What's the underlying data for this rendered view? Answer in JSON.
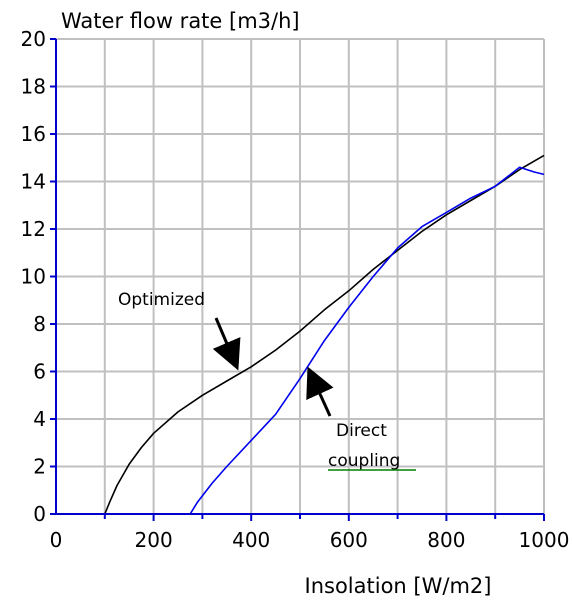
{
  "chart_data": {
    "type": "line",
    "title": "",
    "ylabel": "Water flow rate [m3/h]",
    "xlabel": "Insolation [W/m2]",
    "xlim": [
      0,
      1000
    ],
    "ylim": [
      0,
      20
    ],
    "grid": true,
    "x_ticks": [
      0,
      200,
      400,
      600,
      800,
      1000
    ],
    "y_ticks": [
      0,
      2,
      4,
      6,
      8,
      10,
      12,
      14,
      16,
      18,
      20
    ],
    "series": [
      {
        "name": "Optimized",
        "color": "#000000",
        "points": [
          [
            100,
            0
          ],
          [
            110,
            0.5
          ],
          [
            125,
            1.2
          ],
          [
            150,
            2.1
          ],
          [
            175,
            2.8
          ],
          [
            200,
            3.4
          ],
          [
            250,
            4.3
          ],
          [
            300,
            5.0
          ],
          [
            350,
            5.6
          ],
          [
            400,
            6.2
          ],
          [
            450,
            6.9
          ],
          [
            500,
            7.7
          ],
          [
            550,
            8.6
          ],
          [
            600,
            9.4
          ],
          [
            650,
            10.3
          ],
          [
            700,
            11.1
          ],
          [
            750,
            11.9
          ],
          [
            800,
            12.6
          ],
          [
            850,
            13.2
          ],
          [
            900,
            13.8
          ],
          [
            950,
            14.5
          ],
          [
            1000,
            15.1
          ]
        ]
      },
      {
        "name": "Direct coupling",
        "color": "#0000ee",
        "points": [
          [
            275,
            0
          ],
          [
            290,
            0.5
          ],
          [
            320,
            1.3
          ],
          [
            350,
            2.0
          ],
          [
            400,
            3.1
          ],
          [
            450,
            4.2
          ],
          [
            500,
            5.7
          ],
          [
            550,
            7.3
          ],
          [
            600,
            8.7
          ],
          [
            650,
            10.0
          ],
          [
            700,
            11.2
          ],
          [
            750,
            12.1
          ],
          [
            800,
            12.7
          ],
          [
            850,
            13.3
          ],
          [
            900,
            13.8
          ],
          [
            950,
            14.6
          ],
          [
            980,
            14.4
          ],
          [
            1000,
            14.3
          ]
        ]
      }
    ],
    "annotations": [
      {
        "text": "Optimized",
        "color": "#000000"
      },
      {
        "text_lines": [
          "Direct",
          "coupling"
        ],
        "color": "#000000",
        "underline_color": "#008000"
      }
    ]
  }
}
